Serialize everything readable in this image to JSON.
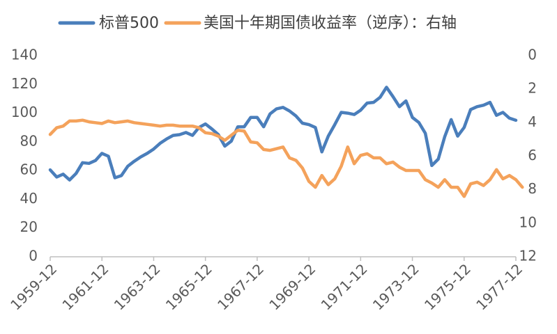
{
  "chart_data": {
    "type": "line",
    "title": "",
    "xlabel": "",
    "ylabel": "",
    "x_tick_labels": [
      "1959-12",
      "1961-12",
      "1963-12",
      "1965-12",
      "1967-12",
      "1969-12",
      "1971-12",
      "1973-12",
      "1975-12",
      "1977-12"
    ],
    "x_range": [
      "1959-12",
      "1977-12"
    ],
    "y_left": {
      "range": [
        0,
        140
      ],
      "ticks": [
        0,
        20,
        40,
        60,
        80,
        100,
        120,
        140
      ]
    },
    "y_right": {
      "range": [
        0,
        12
      ],
      "reversed": true,
      "ticks": [
        0,
        2,
        4,
        6,
        8,
        10,
        12
      ]
    },
    "legend": {
      "position": "top"
    },
    "grid": false,
    "series": [
      {
        "name": "标普500",
        "axis": "left",
        "color": "#4a7ebb",
        "points": [
          [
            "1959-12",
            60.5
          ],
          [
            "1960-03",
            55.5
          ],
          [
            "1960-06",
            57.5
          ],
          [
            "1960-09",
            53.5
          ],
          [
            "1960-12",
            58.0
          ],
          [
            "1961-03",
            65.5
          ],
          [
            "1961-06",
            65.0
          ],
          [
            "1961-09",
            67.0
          ],
          [
            "1961-12",
            72.0
          ],
          [
            "1962-03",
            70.0
          ],
          [
            "1962-06",
            55.0
          ],
          [
            "1962-09",
            56.5
          ],
          [
            "1962-12",
            63.0
          ],
          [
            "1963-03",
            66.5
          ],
          [
            "1963-06",
            69.5
          ],
          [
            "1963-09",
            72.0
          ],
          [
            "1963-12",
            75.0
          ],
          [
            "1964-03",
            79.0
          ],
          [
            "1964-06",
            82.0
          ],
          [
            "1964-09",
            84.5
          ],
          [
            "1964-12",
            85.0
          ],
          [
            "1965-03",
            86.5
          ],
          [
            "1965-06",
            84.5
          ],
          [
            "1965-09",
            90.0
          ],
          [
            "1965-12",
            92.5
          ],
          [
            "1966-03",
            89.0
          ],
          [
            "1966-06",
            85.0
          ],
          [
            "1966-09",
            77.0
          ],
          [
            "1966-12",
            80.5
          ],
          [
            "1967-03",
            90.5
          ],
          [
            "1967-06",
            90.5
          ],
          [
            "1967-09",
            97.0
          ],
          [
            "1967-12",
            97.0
          ],
          [
            "1968-03",
            90.5
          ],
          [
            "1968-06",
            99.5
          ],
          [
            "1968-09",
            103.0
          ],
          [
            "1968-12",
            104.0
          ],
          [
            "1969-03",
            101.5
          ],
          [
            "1969-06",
            98.0
          ],
          [
            "1969-09",
            93.0
          ],
          [
            "1969-12",
            92.0
          ],
          [
            "1970-03",
            90.0
          ],
          [
            "1970-06",
            73.0
          ],
          [
            "1970-09",
            84.0
          ],
          [
            "1970-12",
            92.0
          ],
          [
            "1971-03",
            100.5
          ],
          [
            "1971-06",
            100.0
          ],
          [
            "1971-09",
            99.0
          ],
          [
            "1971-12",
            102.0
          ],
          [
            "1972-03",
            107.0
          ],
          [
            "1972-06",
            107.5
          ],
          [
            "1972-09",
            111.0
          ],
          [
            "1972-12",
            118.0
          ],
          [
            "1973-03",
            111.5
          ],
          [
            "1973-06",
            104.5
          ],
          [
            "1973-09",
            108.5
          ],
          [
            "1973-12",
            97.0
          ],
          [
            "1974-03",
            93.5
          ],
          [
            "1974-06",
            86.0
          ],
          [
            "1974-09",
            63.5
          ],
          [
            "1974-12",
            68.0
          ],
          [
            "1975-03",
            83.5
          ],
          [
            "1975-06",
            95.5
          ],
          [
            "1975-09",
            84.0
          ],
          [
            "1975-12",
            90.0
          ],
          [
            "1976-03",
            102.5
          ],
          [
            "1976-06",
            104.5
          ],
          [
            "1976-09",
            105.5
          ],
          [
            "1976-12",
            107.5
          ],
          [
            "1977-03",
            98.5
          ],
          [
            "1977-06",
            100.5
          ],
          [
            "1977-09",
            96.5
          ],
          [
            "1977-12",
            95.0
          ]
        ]
      },
      {
        "name": "美国十年期国债收益率（逆序）：右轴",
        "axis": "right",
        "color": "#f4a25b",
        "points": [
          [
            "1959-12",
            4.7
          ],
          [
            "1960-03",
            4.3
          ],
          [
            "1960-06",
            4.2
          ],
          [
            "1960-09",
            3.9
          ],
          [
            "1960-12",
            3.9
          ],
          [
            "1961-03",
            3.85
          ],
          [
            "1961-06",
            3.95
          ],
          [
            "1961-09",
            4.0
          ],
          [
            "1961-12",
            4.05
          ],
          [
            "1962-03",
            3.9
          ],
          [
            "1962-06",
            4.0
          ],
          [
            "1962-09",
            3.95
          ],
          [
            "1962-12",
            3.9
          ],
          [
            "1963-03",
            4.0
          ],
          [
            "1963-06",
            4.05
          ],
          [
            "1963-09",
            4.1
          ],
          [
            "1963-12",
            4.15
          ],
          [
            "1964-03",
            4.2
          ],
          [
            "1964-06",
            4.15
          ],
          [
            "1964-09",
            4.15
          ],
          [
            "1964-12",
            4.2
          ],
          [
            "1965-03",
            4.2
          ],
          [
            "1965-06",
            4.2
          ],
          [
            "1965-09",
            4.3
          ],
          [
            "1965-12",
            4.6
          ],
          [
            "1966-03",
            4.65
          ],
          [
            "1966-06",
            4.8
          ],
          [
            "1966-09",
            5.05
          ],
          [
            "1966-12",
            4.75
          ],
          [
            "1967-03",
            4.45
          ],
          [
            "1967-06",
            4.5
          ],
          [
            "1967-09",
            5.15
          ],
          [
            "1967-12",
            5.2
          ],
          [
            "1968-03",
            5.6
          ],
          [
            "1968-06",
            5.65
          ],
          [
            "1968-09",
            5.55
          ],
          [
            "1968-12",
            5.45
          ],
          [
            "1969-03",
            6.1
          ],
          [
            "1969-06",
            6.25
          ],
          [
            "1969-09",
            6.7
          ],
          [
            "1969-12",
            7.5
          ],
          [
            "1970-03",
            7.85
          ],
          [
            "1970-06",
            7.15
          ],
          [
            "1970-09",
            7.7
          ],
          [
            "1970-12",
            7.35
          ],
          [
            "1971-03",
            6.6
          ],
          [
            "1971-06",
            5.45
          ],
          [
            "1971-09",
            6.45
          ],
          [
            "1971-12",
            5.95
          ],
          [
            "1972-03",
            5.85
          ],
          [
            "1972-06",
            6.1
          ],
          [
            "1972-09",
            6.1
          ],
          [
            "1972-12",
            6.45
          ],
          [
            "1973-03",
            6.35
          ],
          [
            "1973-06",
            6.65
          ],
          [
            "1973-09",
            6.85
          ],
          [
            "1973-12",
            6.85
          ],
          [
            "1974-03",
            6.85
          ],
          [
            "1974-06",
            7.4
          ],
          [
            "1974-09",
            7.6
          ],
          [
            "1974-12",
            7.85
          ],
          [
            "1975-03",
            7.4
          ],
          [
            "1975-06",
            7.85
          ],
          [
            "1975-09",
            7.85
          ],
          [
            "1975-12",
            8.4
          ],
          [
            "1976-03",
            7.65
          ],
          [
            "1976-06",
            7.55
          ],
          [
            "1976-09",
            7.75
          ],
          [
            "1976-12",
            7.4
          ],
          [
            "1977-03",
            6.8
          ],
          [
            "1977-06",
            7.35
          ],
          [
            "1977-09",
            7.15
          ],
          [
            "1977-12",
            7.4
          ],
          [
            "1978-03",
            7.85
          ]
        ]
      }
    ]
  }
}
